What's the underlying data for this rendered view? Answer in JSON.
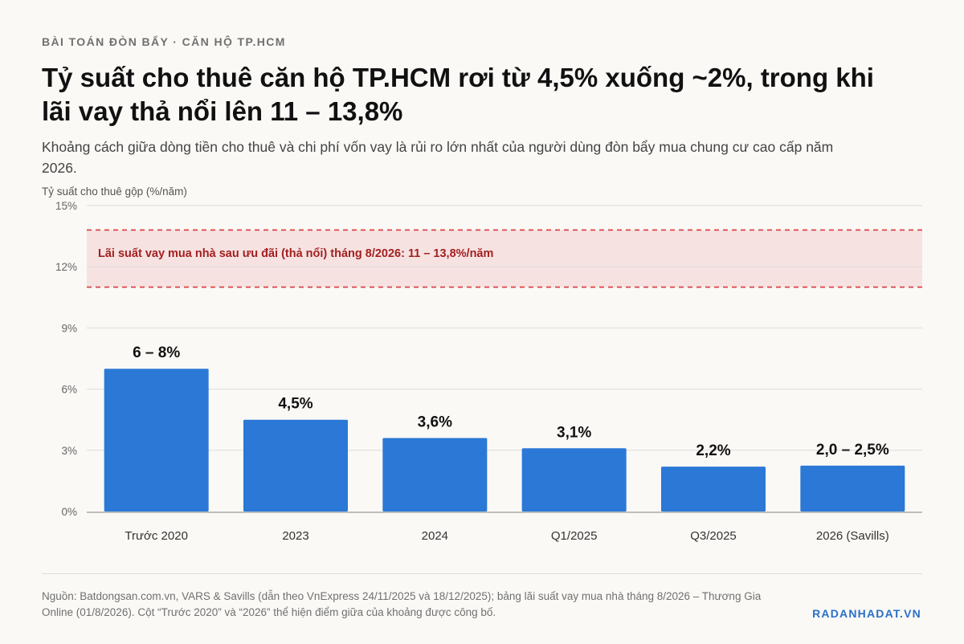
{
  "header": {
    "kicker": "BÀI TOÁN ĐÒN BẨY · CĂN HỘ TP.HCM",
    "title": "Tỷ suất cho thuê căn hộ TP.HCM rơi từ 4,5% xuống ~2%, trong khi lãi vay thả nổi lên 11 – 13,8%",
    "subtitle": "Khoảng cách giữa dòng tiền cho thuê và chi phí vốn vay là rủi ro lớn nhất của người dùng đòn bẩy mua chung cư cao cấp năm 2026."
  },
  "chart_data": {
    "type": "bar",
    "ylabel": "Tỷ suất cho thuê gộp (%/năm)",
    "ylim": [
      0,
      15
    ],
    "yticks": [
      0,
      3,
      6,
      9,
      12,
      15
    ],
    "ytick_labels": [
      "0%",
      "3%",
      "6%",
      "9%",
      "12%",
      "15%"
    ],
    "grid": true,
    "categories": [
      "Trước 2020",
      "2023",
      "2024",
      "Q1/2025",
      "Q3/2025",
      "2026 (Savills)"
    ],
    "values": [
      7.0,
      4.5,
      3.6,
      3.1,
      2.2,
      2.25
    ],
    "value_labels": [
      "6 – 8%",
      "4,5%",
      "3,6%",
      "3,1%",
      "2,2%",
      "2,0 – 2,5%"
    ],
    "band": {
      "from": 11.0,
      "to": 13.8,
      "label": "Lãi suất vay mua nhà sau ưu đãi (thả nổi) tháng 8/2026: 11 – 13,8%/năm"
    },
    "colors": {
      "bar": "#2b78d6",
      "band_fill": "#f7e2e2",
      "band_line": "#d9383a",
      "band_text": "#a32020",
      "grid": "#dcdcdc",
      "baseline": "#bdbdbd"
    }
  },
  "footer": {
    "source": "Nguồn: Batdongsan.com.vn, VARS & Savills (dẫn theo VnExpress 24/11/2025 và 18/12/2025); bảng lãi suất vay mua nhà tháng 8/2026 – Thương Gia Online (01/8/2026). Cột “Trước 2020” và “2026” thể hiện điểm giữa của khoảng được công bố.",
    "brand": "RADANHADAT.VN"
  }
}
